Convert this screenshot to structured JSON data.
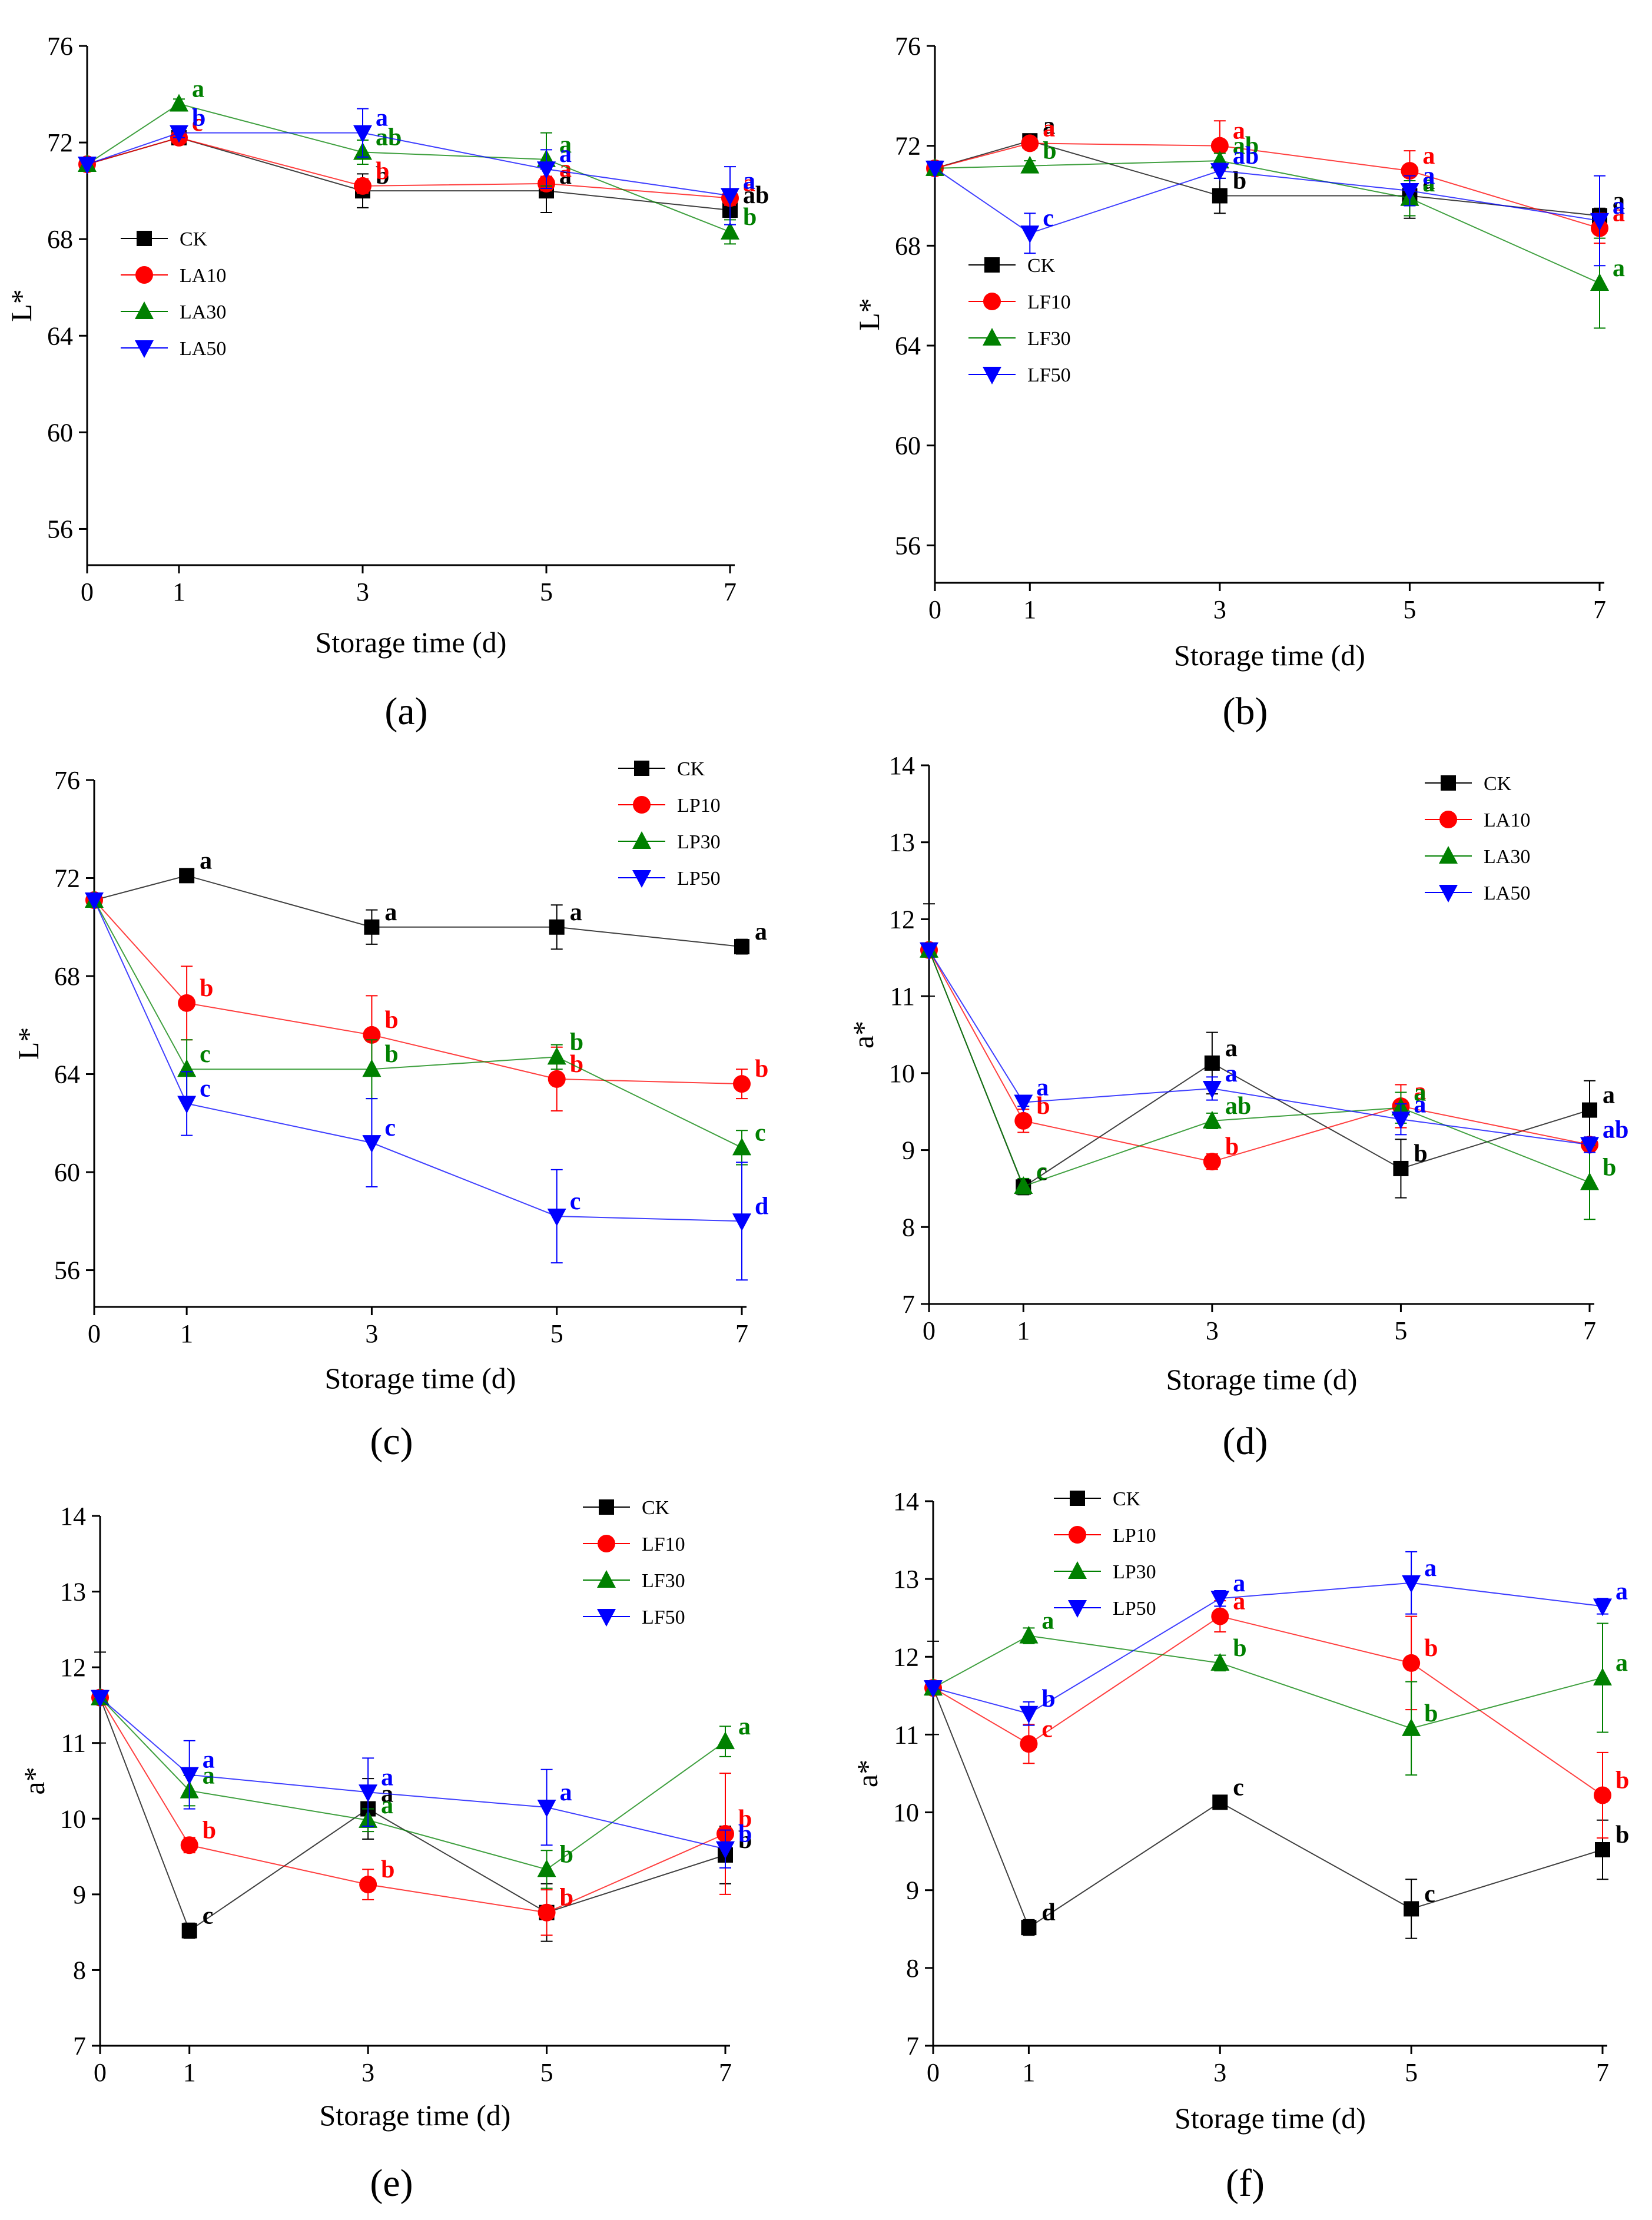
{
  "figure": {
    "title": ""
  },
  "series_colors": {
    "CK": "#000000",
    "10": "#ff0000",
    "30": "#008000",
    "50": "#0000ff"
  },
  "chart_data": [
    {
      "id": "a",
      "panel_label": "(a)",
      "type": "line",
      "xlabel": "Storage time (d)",
      "ylabel": "L*",
      "x": [
        0,
        1,
        3,
        5,
        7
      ],
      "xticks": [
        0,
        1,
        3,
        5,
        7
      ],
      "ylim": [
        54.5,
        76
      ],
      "yticks": [
        56,
        60,
        64,
        68,
        72,
        76
      ],
      "legend_position": "middle-left",
      "series": [
        {
          "name": "CK",
          "marker": "square",
          "values": [
            71.1,
            72.2,
            70.0,
            70.0,
            69.2
          ],
          "errors": [
            0,
            0.1,
            0.7,
            0.9,
            0.3
          ],
          "labels": [
            "",
            "c",
            "b",
            "a",
            "ab"
          ]
        },
        {
          "name": "LA10",
          "marker": "circle",
          "values": [
            71.1,
            72.2,
            70.2,
            70.3,
            69.7
          ],
          "errors": [
            0,
            0.2,
            0.3,
            0.3,
            0.3
          ],
          "labels": [
            "",
            "c",
            "b",
            "a",
            "a"
          ]
        },
        {
          "name": "LA30",
          "marker": "triangle-up",
          "values": [
            71.1,
            73.6,
            71.6,
            71.3,
            68.3
          ],
          "errors": [
            0,
            0.2,
            0.5,
            1.1,
            0.5
          ],
          "labels": [
            "",
            "a",
            "ab",
            "a",
            "b"
          ]
        },
        {
          "name": "LA50",
          "marker": "triangle-down",
          "values": [
            71.1,
            72.4,
            72.4,
            70.9,
            69.8
          ],
          "errors": [
            0,
            0.2,
            1.0,
            0.8,
            1.2
          ],
          "labels": [
            "",
            "b",
            "a",
            "a",
            "a"
          ]
        }
      ]
    },
    {
      "id": "b",
      "panel_label": "(b)",
      "type": "line",
      "xlabel": "Storage time (d)",
      "ylabel": "L*",
      "x": [
        0,
        1,
        3,
        5,
        7
      ],
      "xticks": [
        0,
        1,
        3,
        5,
        7
      ],
      "ylim": [
        54.5,
        76
      ],
      "yticks": [
        56,
        60,
        64,
        68,
        72,
        76
      ],
      "legend_position": "middle-left",
      "series": [
        {
          "name": "CK",
          "marker": "square",
          "values": [
            71.1,
            72.2,
            70.0,
            70.0,
            69.2
          ],
          "errors": [
            0,
            0.1,
            0.7,
            0.9,
            0.3
          ],
          "labels": [
            "",
            "a",
            "b",
            "a",
            "a"
          ]
        },
        {
          "name": "LF10",
          "marker": "circle",
          "values": [
            71.1,
            72.1,
            72.0,
            71.0,
            68.7
          ],
          "errors": [
            0,
            0.1,
            1.0,
            0.8,
            0.6
          ],
          "labels": [
            "",
            "a",
            "a",
            "a",
            "a"
          ]
        },
        {
          "name": "LF30",
          "marker": "triangle-up",
          "values": [
            71.1,
            71.2,
            71.4,
            69.9,
            66.5
          ],
          "errors": [
            0,
            0.2,
            0.3,
            0.7,
            1.8
          ],
          "labels": [
            "",
            "b",
            "ab",
            "a",
            "a"
          ]
        },
        {
          "name": "LF50",
          "marker": "triangle-down",
          "values": [
            71.1,
            68.5,
            71.0,
            70.2,
            69.0
          ],
          "errors": [
            0,
            0.8,
            0.3,
            0.6,
            1.8
          ],
          "labels": [
            "",
            "c",
            "ab",
            "a",
            "a"
          ]
        }
      ]
    },
    {
      "id": "c",
      "panel_label": "(c)",
      "type": "line",
      "xlabel": "Storage time (d)",
      "ylabel": "L*",
      "x": [
        0,
        1,
        3,
        5,
        7
      ],
      "xticks": [
        0,
        1,
        3,
        5,
        7
      ],
      "ylim": [
        54.5,
        76
      ],
      "yticks": [
        56,
        60,
        64,
        68,
        72,
        76
      ],
      "legend_position": "top-right",
      "series": [
        {
          "name": "CK",
          "marker": "square",
          "values": [
            71.1,
            72.1,
            70.0,
            70.0,
            69.2
          ],
          "errors": [
            0,
            0.2,
            0.7,
            0.9,
            0.3
          ],
          "labels": [
            "",
            "a",
            "a",
            "a",
            "a"
          ]
        },
        {
          "name": "LP10",
          "marker": "circle",
          "values": [
            71.1,
            66.9,
            65.6,
            63.8,
            63.6
          ],
          "errors": [
            0,
            1.5,
            1.6,
            1.3,
            0.6
          ],
          "labels": [
            "",
            "b",
            "b",
            "b",
            "b"
          ]
        },
        {
          "name": "LP30",
          "marker": "triangle-up",
          "values": [
            71.1,
            64.2,
            64.2,
            64.7,
            61.0
          ],
          "errors": [
            0,
            1.2,
            1.2,
            0.5,
            0.7
          ],
          "labels": [
            "",
            "c",
            "b",
            "b",
            "c"
          ]
        },
        {
          "name": "LP50",
          "marker": "triangle-down",
          "values": [
            71.1,
            62.8,
            61.2,
            58.2,
            58.0
          ],
          "errors": [
            0,
            1.3,
            1.8,
            1.9,
            2.4
          ],
          "labels": [
            "",
            "c",
            "c",
            "c",
            "d"
          ]
        }
      ]
    },
    {
      "id": "d",
      "panel_label": "(d)",
      "type": "line",
      "xlabel": "Storage time (d)",
      "ylabel": "a*",
      "x": [
        0,
        1,
        3,
        5,
        7
      ],
      "xticks": [
        0,
        1,
        3,
        5,
        7
      ],
      "ylim": [
        7,
        14
      ],
      "yticks": [
        7,
        8,
        9,
        10,
        11,
        12,
        13,
        14
      ],
      "legend_position": "top-right",
      "series": [
        {
          "name": "CK",
          "marker": "square",
          "values": [
            11.6,
            8.52,
            10.13,
            8.76,
            9.52
          ],
          "errors": [
            0.6,
            0.1,
            0.4,
            0.38,
            0.38
          ],
          "labels": [
            "",
            "c",
            "a",
            "b",
            "a"
          ]
        },
        {
          "name": "LA10",
          "marker": "circle",
          "values": [
            11.6,
            9.38,
            8.85,
            9.57,
            9.07
          ],
          "errors": [
            0,
            0.15,
            0.1,
            0.28,
            0.1
          ],
          "labels": [
            "",
            "b",
            "b",
            "a",
            "ab"
          ]
        },
        {
          "name": "LA30",
          "marker": "triangle-up",
          "values": [
            11.6,
            8.53,
            9.38,
            9.55,
            8.58
          ],
          "errors": [
            0,
            0.1,
            0.1,
            0.2,
            0.48
          ],
          "labels": [
            "",
            "c",
            "ab",
            "a",
            "b"
          ]
        },
        {
          "name": "LA50",
          "marker": "triangle-down",
          "values": [
            11.6,
            9.62,
            9.8,
            9.4,
            9.07
          ],
          "errors": [
            0,
            0.05,
            0.15,
            0.2,
            0.1
          ],
          "labels": [
            "",
            "a",
            "a",
            "a",
            "ab"
          ]
        }
      ]
    },
    {
      "id": "e",
      "panel_label": "(e)",
      "type": "line",
      "xlabel": "Storage time (d)",
      "ylabel": "a*",
      "x": [
        0,
        1,
        3,
        5,
        7
      ],
      "xticks": [
        0,
        1,
        3,
        5,
        7
      ],
      "ylim": [
        7,
        14
      ],
      "yticks": [
        7,
        8,
        9,
        10,
        11,
        12,
        13,
        14
      ],
      "legend_position": "top-right",
      "series": [
        {
          "name": "CK",
          "marker": "square",
          "values": [
            11.6,
            8.52,
            10.13,
            8.76,
            9.52
          ],
          "errors": [
            0.6,
            0.1,
            0.4,
            0.38,
            0.38
          ],
          "labels": [
            "",
            "c",
            "a",
            "b",
            "b"
          ]
        },
        {
          "name": "LF10",
          "marker": "circle",
          "values": [
            11.6,
            9.65,
            9.13,
            8.76,
            9.8
          ],
          "errors": [
            0,
            0.1,
            0.2,
            0.3,
            0.8
          ],
          "labels": [
            "",
            "b",
            "b",
            "b",
            "b"
          ]
        },
        {
          "name": "LF30",
          "marker": "triangle-up",
          "values": [
            11.6,
            10.37,
            9.98,
            9.33,
            11.02
          ],
          "errors": [
            0,
            0.2,
            0.15,
            0.25,
            0.2
          ],
          "labels": [
            "",
            "a",
            "a",
            "b",
            "a"
          ]
        },
        {
          "name": "LF50",
          "marker": "triangle-down",
          "values": [
            11.6,
            10.58,
            10.35,
            10.15,
            9.6
          ],
          "errors": [
            0,
            0.45,
            0.45,
            0.5,
            0.25
          ],
          "labels": [
            "",
            "a",
            "a",
            "a",
            "b"
          ]
        }
      ]
    },
    {
      "id": "f",
      "panel_label": "(f)",
      "type": "line",
      "xlabel": "Storage time (d)",
      "ylabel": "a*",
      "x": [
        0,
        1,
        3,
        5,
        7
      ],
      "xticks": [
        0,
        1,
        3,
        5,
        7
      ],
      "ylim": [
        7,
        14
      ],
      "yticks": [
        7,
        8,
        9,
        10,
        11,
        12,
        13,
        14
      ],
      "legend_position": "top-left",
      "series": [
        {
          "name": "CK",
          "marker": "square",
          "values": [
            11.6,
            8.52,
            10.13,
            8.76,
            9.52
          ],
          "errors": [
            0.6,
            0.1,
            0.05,
            0.38,
            0.38
          ],
          "labels": [
            "",
            "d",
            "c",
            "c",
            "b"
          ]
        },
        {
          "name": "LP10",
          "marker": "circle",
          "values": [
            11.6,
            10.88,
            12.52,
            11.92,
            10.22
          ],
          "errors": [
            0,
            0.25,
            0.2,
            0.6,
            0.55
          ],
          "labels": [
            "",
            "c",
            "a",
            "b",
            "b"
          ]
        },
        {
          "name": "LP30",
          "marker": "triangle-up",
          "values": [
            11.6,
            12.27,
            11.92,
            11.08,
            11.73
          ],
          "errors": [
            0,
            0.1,
            0.1,
            0.6,
            0.7
          ],
          "labels": [
            "",
            "a",
            "b",
            "b",
            "a"
          ]
        },
        {
          "name": "LP50",
          "marker": "triangle-down",
          "values": [
            11.6,
            11.27,
            12.75,
            12.95,
            12.65
          ],
          "errors": [
            0,
            0.15,
            0.1,
            0.4,
            0.1
          ],
          "labels": [
            "",
            "b",
            "a",
            "a",
            "a"
          ]
        }
      ]
    }
  ]
}
